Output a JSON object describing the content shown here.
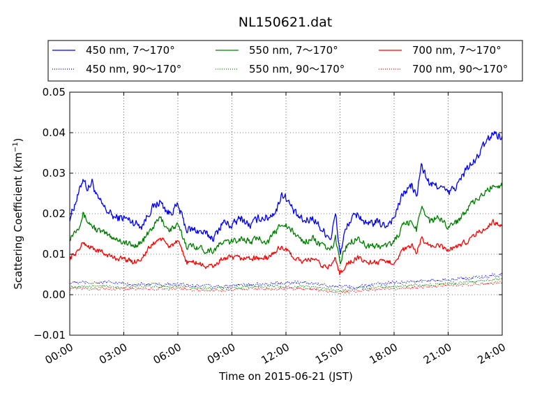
{
  "chart_data": {
    "type": "line",
    "title": "NL150621.dat",
    "xlabel": "Time on 2015-06-21 (JST)",
    "ylabel_main": "Scattering Coefficient (km",
    "ylabel_sup": "−1",
    "ylabel_end": ")",
    "xlim_hours": [
      0,
      24
    ],
    "ylim": [
      -0.01,
      0.05
    ],
    "grid": true,
    "legend_position": "top, above plot, 3 columns",
    "x_ticks": [
      "00:00",
      "03:00",
      "06:00",
      "09:00",
      "12:00",
      "15:00",
      "18:00",
      "21:00",
      "24:00"
    ],
    "y_ticks": [
      "−0.01",
      "0.00",
      "0.01",
      "0.02",
      "0.03",
      "0.04",
      "0.05"
    ],
    "series": [
      {
        "name": "450 nm, 7～170°",
        "color": "#0000ff",
        "style": "solid",
        "jitter": 0.0014,
        "points": [
          [
            0.0,
            0.019
          ],
          [
            0.5,
            0.025
          ],
          [
            0.75,
            0.029
          ],
          [
            1.0,
            0.026
          ],
          [
            1.25,
            0.028
          ],
          [
            1.5,
            0.024
          ],
          [
            2.0,
            0.021
          ],
          [
            2.5,
            0.019
          ],
          [
            3.0,
            0.019
          ],
          [
            3.5,
            0.018
          ],
          [
            4.0,
            0.017
          ],
          [
            4.5,
            0.021
          ],
          [
            5.0,
            0.023
          ],
          [
            5.5,
            0.02
          ],
          [
            6.0,
            0.022
          ],
          [
            6.5,
            0.016
          ],
          [
            7.0,
            0.016
          ],
          [
            7.5,
            0.015
          ],
          [
            8.0,
            0.014
          ],
          [
            8.5,
            0.018
          ],
          [
            9.0,
            0.017
          ],
          [
            9.5,
            0.019
          ],
          [
            10.0,
            0.017
          ],
          [
            10.5,
            0.019
          ],
          [
            11.0,
            0.019
          ],
          [
            11.5,
            0.021
          ],
          [
            11.75,
            0.025
          ],
          [
            12.0,
            0.024
          ],
          [
            12.5,
            0.02
          ],
          [
            13.0,
            0.018
          ],
          [
            13.5,
            0.019
          ],
          [
            14.0,
            0.016
          ],
          [
            14.5,
            0.014
          ],
          [
            14.75,
            0.02
          ],
          [
            15.0,
            0.01
          ],
          [
            15.25,
            0.015
          ],
          [
            15.5,
            0.018
          ],
          [
            16.0,
            0.02
          ],
          [
            16.5,
            0.017
          ],
          [
            17.0,
            0.018
          ],
          [
            17.5,
            0.017
          ],
          [
            18.0,
            0.019
          ],
          [
            18.5,
            0.025
          ],
          [
            19.0,
            0.027
          ],
          [
            19.25,
            0.024
          ],
          [
            19.5,
            0.032
          ],
          [
            20.0,
            0.027
          ],
          [
            20.5,
            0.027
          ],
          [
            21.0,
            0.025
          ],
          [
            21.5,
            0.027
          ],
          [
            22.0,
            0.031
          ],
          [
            22.5,
            0.033
          ],
          [
            23.0,
            0.037
          ],
          [
            23.5,
            0.04
          ],
          [
            24.0,
            0.039
          ]
        ]
      },
      {
        "name": "550 nm, 7～170°",
        "color": "#008000",
        "style": "solid",
        "jitter": 0.0011,
        "points": [
          [
            0.0,
            0.014
          ],
          [
            0.5,
            0.017
          ],
          [
            0.75,
            0.02
          ],
          [
            1.0,
            0.018
          ],
          [
            1.5,
            0.016
          ],
          [
            2.0,
            0.015
          ],
          [
            2.5,
            0.014
          ],
          [
            3.0,
            0.013
          ],
          [
            3.5,
            0.012
          ],
          [
            4.0,
            0.013
          ],
          [
            4.5,
            0.016
          ],
          [
            5.0,
            0.019
          ],
          [
            5.5,
            0.016
          ],
          [
            6.0,
            0.017
          ],
          [
            6.5,
            0.012
          ],
          [
            7.0,
            0.012
          ],
          [
            7.5,
            0.011
          ],
          [
            8.0,
            0.011
          ],
          [
            8.5,
            0.013
          ],
          [
            9.0,
            0.013
          ],
          [
            9.5,
            0.014
          ],
          [
            10.0,
            0.013
          ],
          [
            10.5,
            0.014
          ],
          [
            11.0,
            0.013
          ],
          [
            11.5,
            0.016
          ],
          [
            11.75,
            0.018
          ],
          [
            12.0,
            0.017
          ],
          [
            12.5,
            0.015
          ],
          [
            13.0,
            0.013
          ],
          [
            13.5,
            0.014
          ],
          [
            14.0,
            0.012
          ],
          [
            14.5,
            0.011
          ],
          [
            14.75,
            0.014
          ],
          [
            15.0,
            0.008
          ],
          [
            15.25,
            0.011
          ],
          [
            15.5,
            0.013
          ],
          [
            16.0,
            0.014
          ],
          [
            16.5,
            0.012
          ],
          [
            17.0,
            0.012
          ],
          [
            17.5,
            0.012
          ],
          [
            18.0,
            0.013
          ],
          [
            18.5,
            0.017
          ],
          [
            19.0,
            0.018
          ],
          [
            19.25,
            0.016
          ],
          [
            19.5,
            0.022
          ],
          [
            20.0,
            0.018
          ],
          [
            20.5,
            0.019
          ],
          [
            21.0,
            0.017
          ],
          [
            21.5,
            0.018
          ],
          [
            22.0,
            0.021
          ],
          [
            22.5,
            0.023
          ],
          [
            23.0,
            0.025
          ],
          [
            23.5,
            0.027
          ],
          [
            24.0,
            0.027
          ]
        ]
      },
      {
        "name": "700 nm, 7～170°",
        "color": "#ff0000",
        "style": "solid",
        "jitter": 0.0009,
        "points": [
          [
            0.0,
            0.009
          ],
          [
            0.5,
            0.011
          ],
          [
            0.75,
            0.013
          ],
          [
            1.0,
            0.012
          ],
          [
            1.5,
            0.011
          ],
          [
            2.0,
            0.01
          ],
          [
            2.5,
            0.009
          ],
          [
            3.0,
            0.009
          ],
          [
            3.5,
            0.008
          ],
          [
            4.0,
            0.009
          ],
          [
            4.5,
            0.012
          ],
          [
            5.0,
            0.014
          ],
          [
            5.5,
            0.012
          ],
          [
            6.0,
            0.013
          ],
          [
            6.5,
            0.008
          ],
          [
            7.0,
            0.008
          ],
          [
            7.5,
            0.007
          ],
          [
            8.0,
            0.007
          ],
          [
            8.5,
            0.009
          ],
          [
            9.0,
            0.009
          ],
          [
            9.5,
            0.009
          ],
          [
            10.0,
            0.009
          ],
          [
            10.5,
            0.009
          ],
          [
            11.0,
            0.009
          ],
          [
            11.5,
            0.011
          ],
          [
            11.75,
            0.012
          ],
          [
            12.0,
            0.011
          ],
          [
            12.5,
            0.009
          ],
          [
            13.0,
            0.008
          ],
          [
            13.5,
            0.009
          ],
          [
            14.0,
            0.007
          ],
          [
            14.5,
            0.007
          ],
          [
            14.75,
            0.009
          ],
          [
            15.0,
            0.005
          ],
          [
            15.25,
            0.007
          ],
          [
            15.5,
            0.008
          ],
          [
            16.0,
            0.009
          ],
          [
            16.5,
            0.008
          ],
          [
            17.0,
            0.008
          ],
          [
            17.5,
            0.008
          ],
          [
            18.0,
            0.008
          ],
          [
            18.5,
            0.011
          ],
          [
            19.0,
            0.012
          ],
          [
            19.25,
            0.01
          ],
          [
            19.5,
            0.014
          ],
          [
            20.0,
            0.012
          ],
          [
            20.5,
            0.012
          ],
          [
            21.0,
            0.011
          ],
          [
            21.5,
            0.012
          ],
          [
            22.0,
            0.013
          ],
          [
            22.5,
            0.015
          ],
          [
            23.0,
            0.016
          ],
          [
            23.5,
            0.018
          ],
          [
            24.0,
            0.017
          ]
        ]
      },
      {
        "name": "450 nm, 90～170°",
        "color": "#0000ff",
        "style": "dotted",
        "jitter": 0.0006,
        "points": [
          [
            0.0,
            0.003
          ],
          [
            2.0,
            0.003
          ],
          [
            4.0,
            0.0025
          ],
          [
            6.0,
            0.0025
          ],
          [
            8.0,
            0.002
          ],
          [
            10.0,
            0.0025
          ],
          [
            12.0,
            0.003
          ],
          [
            13.0,
            0.003
          ],
          [
            15.0,
            0.002
          ],
          [
            16.0,
            0.002
          ],
          [
            18.0,
            0.003
          ],
          [
            20.0,
            0.0035
          ],
          [
            22.0,
            0.004
          ],
          [
            24.0,
            0.005
          ]
        ]
      },
      {
        "name": "550 nm, 90～170°",
        "color": "#008000",
        "style": "dotted",
        "jitter": 0.0005,
        "points": [
          [
            0.0,
            0.002
          ],
          [
            2.0,
            0.002
          ],
          [
            4.0,
            0.002
          ],
          [
            6.0,
            0.002
          ],
          [
            8.0,
            0.0015
          ],
          [
            10.0,
            0.002
          ],
          [
            12.0,
            0.002
          ],
          [
            13.0,
            0.002
          ],
          [
            15.0,
            0.001
          ],
          [
            16.0,
            0.0015
          ],
          [
            18.0,
            0.002
          ],
          [
            20.0,
            0.0025
          ],
          [
            22.0,
            0.003
          ],
          [
            24.0,
            0.004
          ]
        ]
      },
      {
        "name": "700 nm, 90～170°",
        "color": "#ff0000",
        "style": "dotted",
        "jitter": 0.0005,
        "points": [
          [
            0.0,
            0.0015
          ],
          [
            2.0,
            0.0015
          ],
          [
            4.0,
            0.0015
          ],
          [
            6.0,
            0.0015
          ],
          [
            8.0,
            0.001
          ],
          [
            10.0,
            0.0015
          ],
          [
            12.0,
            0.0015
          ],
          [
            13.0,
            0.0015
          ],
          [
            15.0,
            0.0005
          ],
          [
            16.0,
            0.001
          ],
          [
            18.0,
            0.0015
          ],
          [
            20.0,
            0.002
          ],
          [
            22.0,
            0.0025
          ],
          [
            24.0,
            0.003
          ]
        ]
      }
    ]
  }
}
